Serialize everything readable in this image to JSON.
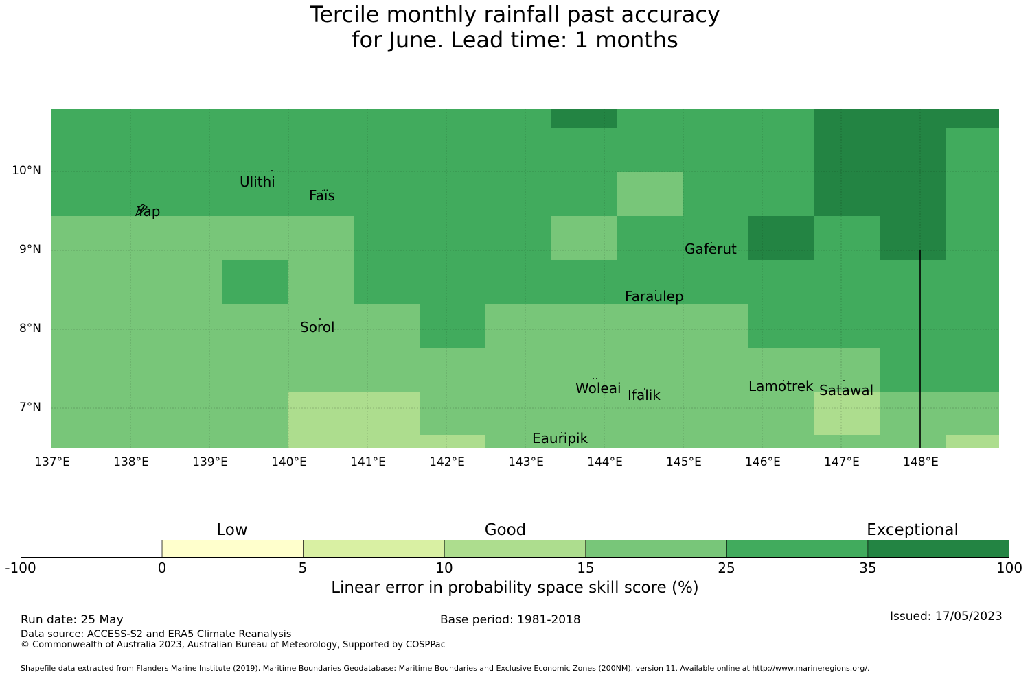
{
  "title": {
    "line1": "Tercile monthly rainfall past accuracy",
    "line2": "for June. Lead time: 1 months"
  },
  "map": {
    "lon_labels": [
      "137°E",
      "138°E",
      "139°E",
      "140°E",
      "141°E",
      "142°E",
      "143°E",
      "144°E",
      "145°E",
      "146°E",
      "147°E",
      "148°E"
    ],
    "lat_labels": [
      "10°N",
      "9°N",
      "8°N",
      "7°N"
    ],
    "places": [
      {
        "name": "Ulithi"
      },
      {
        "name": "Faïs"
      },
      {
        "name": "Yap"
      },
      {
        "name": "Gaferut"
      },
      {
        "name": "Faraulep"
      },
      {
        "name": "Sorol"
      },
      {
        "name": "Woleai"
      },
      {
        "name": "Ifalik"
      },
      {
        "name": "Lamotrek"
      },
      {
        "name": "Satawal"
      },
      {
        "name": "Eauripik"
      }
    ]
  },
  "colorbar": {
    "categories": [
      "Low",
      "Good",
      "Exceptional"
    ],
    "ticks": [
      "-100",
      "0",
      "5",
      "10",
      "15",
      "25",
      "35",
      "100"
    ],
    "colors": [
      "#ffffff",
      "#ffffcc",
      "#d9f0a3",
      "#addd8e",
      "#78c679",
      "#41ab5d",
      "#238443"
    ],
    "label": "Linear error in probability space skill score (%)"
  },
  "footer": {
    "run_date": "Run date: 25 May",
    "base_period": "Base period: 1981-2018",
    "issued": "Issued: 17/05/2023",
    "data_source": "Data source: ACCESS-S2 and ERA5 Climate Reanalysis",
    "copyright": "© Commonwealth of Australia 2023, Australian Bureau of Meteorology, Supported by COSPPac",
    "shapefile": "Shapefile data extracted from Flanders Marine Institute (2019), Maritime Boundaries Geodatabase: Maritime Boundaries and Exclusive Economic Zones (200NM), version 11. Available online at http://www.marineregions.org/."
  }
}
